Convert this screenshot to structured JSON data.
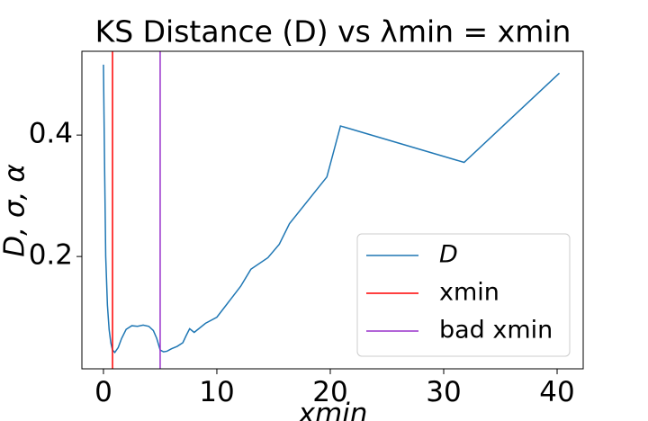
{
  "chart_data": {
    "type": "line",
    "title": "KS Distance (D) vs λmin = xmin",
    "x_label": "xmin",
    "y_label": "D, σ, α",
    "x": [
      0,
      0.1,
      0.2,
      0.35,
      0.5,
      0.65,
      0.8,
      1.0,
      1.3,
      1.6,
      2.0,
      2.5,
      3.0,
      3.5,
      4.0,
      4.4,
      4.7,
      5.0,
      5.3,
      5.6,
      6.0,
      6.5,
      7.0,
      7.3,
      7.6,
      8.0,
      9.0,
      10.0,
      12.1,
      13.0,
      14.5,
      15.5,
      16.4,
      19.7,
      20.9,
      31.8,
      40.2
    ],
    "series": [
      {
        "name": "D",
        "color": "#1f77b4",
        "values": [
          0.516,
          0.35,
          0.2,
          0.12,
          0.08,
          0.058,
          0.046,
          0.042,
          0.05,
          0.065,
          0.08,
          0.086,
          0.085,
          0.087,
          0.085,
          0.078,
          0.065,
          0.046,
          0.043,
          0.044,
          0.048,
          0.052,
          0.058,
          0.07,
          0.081,
          0.075,
          0.09,
          0.1,
          0.151,
          0.179,
          0.198,
          0.22,
          0.254,
          0.331,
          0.415,
          0.355,
          0.502
        ]
      }
    ],
    "vlines": [
      {
        "name": "xmin",
        "color": "#ff0000",
        "x": 0.8
      },
      {
        "name": "bad xmin",
        "color": "#9932cc",
        "x": 5.0
      }
    ],
    "xlim": [
      -1.9,
      42.3
    ],
    "ylim": [
      0.015,
      0.538
    ],
    "xticks": [
      0,
      10,
      20,
      30,
      40
    ],
    "yticks": [
      0.2,
      0.4
    ],
    "legend": "lower right"
  }
}
